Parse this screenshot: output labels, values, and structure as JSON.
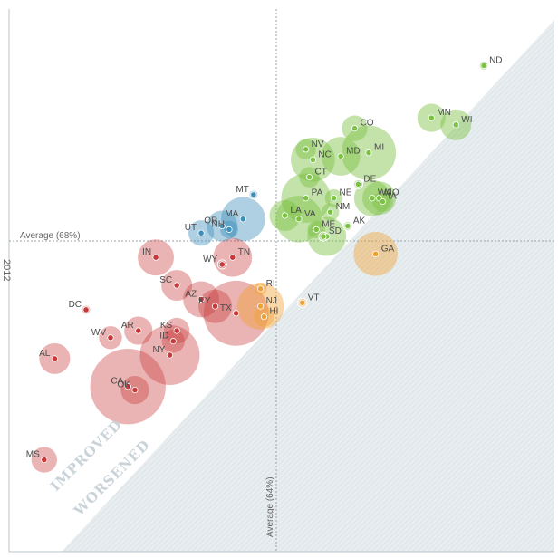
{
  "chart_data": {
    "type": "scatter",
    "title": "",
    "xlabel": "",
    "ylabel": "2012",
    "xlim": [
      40,
      100
    ],
    "ylim": [
      40,
      100
    ],
    "region_labels": {
      "improved": "IMPROVED",
      "worsened": "WORSENED"
    },
    "averages": {
      "x_label": "Average (64%)",
      "x_value": 64,
      "y_label": "Average (68%)",
      "y_value": 68
    },
    "colors": {
      "improved_high": "#7cc242",
      "improved_mid": "#3d8fb9",
      "improved_low": "#c8393a",
      "worsened": "#f0a030"
    },
    "states": [
      {
        "name": "ND",
        "x": 93.0,
        "y": 94.5,
        "size": 1,
        "group": "improved_high"
      },
      {
        "name": "MN",
        "x": 85.5,
        "y": 87.0,
        "size": 8,
        "group": "improved_high"
      },
      {
        "name": "WI",
        "x": 89.0,
        "y": 86.0,
        "size": 9,
        "group": "improved_high"
      },
      {
        "name": "CO",
        "x": 74.5,
        "y": 85.5,
        "size": 7,
        "group": "improved_high"
      },
      {
        "name": "NV",
        "x": 67.5,
        "y": 82.5,
        "size": 5,
        "group": "improved_high"
      },
      {
        "name": "MD",
        "x": 72.5,
        "y": 81.5,
        "size": 12,
        "group": "improved_high"
      },
      {
        "name": "NC",
        "x": 68.5,
        "y": 81.0,
        "size": 14,
        "group": "improved_high"
      },
      {
        "name": "MI",
        "x": 76.5,
        "y": 82.0,
        "size": 18,
        "group": "improved_high"
      },
      {
        "name": "CT",
        "x": 68.0,
        "y": 78.5,
        "size": 5,
        "group": "improved_high"
      },
      {
        "name": "DE",
        "x": 75.0,
        "y": 77.5,
        "size": 1,
        "group": "improved_high"
      },
      {
        "name": "PA",
        "x": 67.5,
        "y": 75.5,
        "size": 16,
        "group": "improved_high"
      },
      {
        "name": "NE",
        "x": 71.5,
        "y": 75.5,
        "size": 4,
        "group": "improved_high"
      },
      {
        "name": "WA",
        "x": 77.0,
        "y": 75.5,
        "size": 11,
        "group": "improved_high"
      },
      {
        "name": "MO",
        "x": 78.0,
        "y": 75.5,
        "size": 10,
        "group": "improved_high"
      },
      {
        "name": "IA",
        "x": 78.5,
        "y": 75.0,
        "size": 5,
        "group": "improved_high"
      },
      {
        "name": "NM",
        "x": 71.0,
        "y": 73.5,
        "size": 4,
        "group": "improved_high"
      },
      {
        "name": "LA",
        "x": 64.5,
        "y": 73.0,
        "size": 9,
        "group": "improved_high"
      },
      {
        "name": "VA",
        "x": 66.5,
        "y": 72.5,
        "size": 15,
        "group": "improved_high"
      },
      {
        "name": "AK",
        "x": 73.5,
        "y": 71.5,
        "size": 1,
        "group": "improved_high"
      },
      {
        "name": "ME",
        "x": 69.0,
        "y": 71.0,
        "size": 4,
        "group": "improved_high"
      },
      {
        "name": "TN_G",
        "label": "",
        "x": 70.5,
        "y": 70.0,
        "size": 12,
        "group": "improved_high"
      },
      {
        "name": "SD",
        "x": 70.0,
        "y": 70.0,
        "size": 1,
        "group": "improved_high"
      },
      {
        "name": "UT",
        "x": 52.5,
        "y": 70.5,
        "size": 7,
        "group": "improved_mid"
      },
      {
        "name": "OR",
        "x": 55.5,
        "y": 71.5,
        "size": 9,
        "group": "improved_mid"
      },
      {
        "name": "NH",
        "x": 56.5,
        "y": 71.0,
        "size": 4,
        "group": "improved_mid"
      },
      {
        "name": "MA",
        "x": 58.5,
        "y": 72.5,
        "size": 14,
        "group": "improved_mid"
      },
      {
        "name": "MT",
        "x": 60.0,
        "y": 76.0,
        "size": 1,
        "group": "improved_mid"
      },
      {
        "name": "IN",
        "x": 46.0,
        "y": 67.0,
        "size": 11,
        "group": "improved_low"
      },
      {
        "name": "TN",
        "x": 57.0,
        "y": 67.0,
        "size": 12,
        "group": "improved_low"
      },
      {
        "name": "WY",
        "x": 55.5,
        "y": 66.0,
        "size": 1,
        "group": "improved_low"
      },
      {
        "name": "SC",
        "x": 49.0,
        "y": 63.0,
        "size": 9,
        "group": "improved_low"
      },
      {
        "name": "AZ",
        "x": 52.5,
        "y": 61.0,
        "size": 11,
        "group": "improved_low"
      },
      {
        "name": "KY",
        "x": 54.5,
        "y": 60.0,
        "size": 10,
        "group": "improved_low"
      },
      {
        "name": "TX",
        "x": 57.5,
        "y": 59.0,
        "size": 22,
        "group": "improved_low"
      },
      {
        "name": "DC",
        "x": 36.0,
        "y": 59.5,
        "size": 1,
        "group": "improved_low"
      },
      {
        "name": "AR",
        "x": 43.5,
        "y": 56.5,
        "size": 8,
        "group": "improved_low"
      },
      {
        "name": "WV",
        "x": 39.5,
        "y": 55.5,
        "size": 6,
        "group": "improved_low"
      },
      {
        "name": "KS",
        "x": 49.0,
        "y": 56.5,
        "size": 7,
        "group": "improved_low"
      },
      {
        "name": "ID",
        "x": 48.5,
        "y": 55.0,
        "size": 6,
        "group": "improved_low"
      },
      {
        "name": "NY",
        "x": 48.0,
        "y": 53.0,
        "size": 20,
        "group": "improved_low"
      },
      {
        "name": "AL",
        "x": 31.5,
        "y": 52.5,
        "size": 9,
        "group": "improved_low"
      },
      {
        "name": "CA",
        "x": 42.0,
        "y": 48.5,
        "size": 26,
        "group": "improved_low"
      },
      {
        "name": "OK",
        "x": 43.0,
        "y": 48.0,
        "size": 8,
        "group": "improved_low"
      },
      {
        "name": "MS",
        "x": 30.0,
        "y": 38.0,
        "size": 7,
        "group": "improved_low"
      },
      {
        "name": "GA",
        "x": 77.5,
        "y": 67.5,
        "size": 14,
        "group": "worsened"
      },
      {
        "name": "RI",
        "x": 61.0,
        "y": 62.5,
        "size": 2,
        "group": "worsened"
      },
      {
        "name": "NJ",
        "x": 61.0,
        "y": 60.0,
        "size": 15,
        "group": "worsened"
      },
      {
        "name": "HI",
        "x": 61.5,
        "y": 58.5,
        "size": 5,
        "group": "worsened"
      },
      {
        "name": "VT",
        "x": 67.0,
        "y": 60.5,
        "size": 1,
        "group": "worsened"
      }
    ]
  }
}
